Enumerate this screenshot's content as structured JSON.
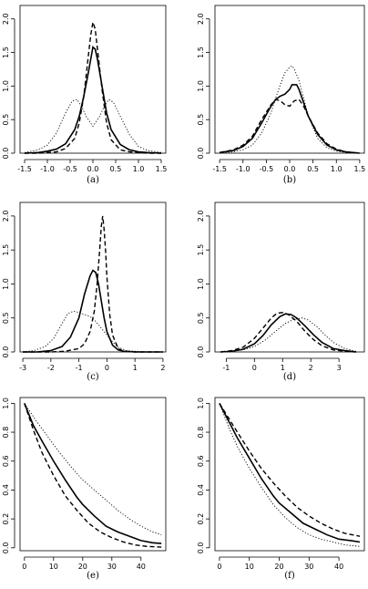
{
  "chart_data": [
    {
      "type": "line",
      "caption": "(a)",
      "xlim": [
        -1.6,
        1.6
      ],
      "ylim": [
        0,
        2.2
      ],
      "xticks": [
        "-1.5",
        "-1.0",
        "-0.5",
        "0.0",
        "0.5",
        "1.0",
        "1.5"
      ],
      "xtick_values": [
        -1.5,
        -1.0,
        -0.5,
        0.0,
        0.5,
        1.0,
        1.5
      ],
      "yticks": [
        "0.0",
        "0.5",
        "1.0",
        "1.5",
        "2.0"
      ],
      "ytick_values": [
        0.0,
        0.5,
        1.0,
        1.5,
        2.0
      ],
      "series": [
        {
          "style": "solid",
          "x": [
            -1.5,
            -1.2,
            -1.0,
            -0.8,
            -0.6,
            -0.4,
            -0.3,
            -0.2,
            -0.1,
            0.0,
            0.05,
            0.1,
            0.2,
            0.3,
            0.4,
            0.6,
            0.8,
            1.0,
            1.2,
            1.5
          ],
          "y": [
            0.0,
            0.01,
            0.03,
            0.06,
            0.14,
            0.35,
            0.55,
            0.85,
            1.2,
            1.58,
            1.55,
            1.4,
            1.0,
            0.6,
            0.35,
            0.13,
            0.05,
            0.02,
            0.01,
            0.0
          ]
        },
        {
          "style": "dashed",
          "x": [
            -1.5,
            -1.2,
            -1.0,
            -0.8,
            -0.6,
            -0.4,
            -0.3,
            -0.2,
            -0.1,
            -0.05,
            0.0,
            0.05,
            0.1,
            0.2,
            0.3,
            0.4,
            0.6,
            0.8,
            1.0,
            1.2,
            1.5
          ],
          "y": [
            0.0,
            0.0,
            0.01,
            0.02,
            0.07,
            0.22,
            0.45,
            0.85,
            1.45,
            1.75,
            1.95,
            1.85,
            1.55,
            0.95,
            0.45,
            0.2,
            0.05,
            0.02,
            0.01,
            0.0,
            0.0
          ]
        },
        {
          "style": "dotted",
          "x": [
            -1.5,
            -1.2,
            -1.0,
            -0.8,
            -0.6,
            -0.45,
            -0.35,
            -0.25,
            -0.15,
            -0.05,
            0.0,
            0.05,
            0.15,
            0.25,
            0.35,
            0.45,
            0.6,
            0.8,
            1.0,
            1.2,
            1.5
          ],
          "y": [
            0.01,
            0.05,
            0.12,
            0.3,
            0.6,
            0.78,
            0.8,
            0.7,
            0.55,
            0.45,
            0.4,
            0.45,
            0.55,
            0.7,
            0.8,
            0.76,
            0.55,
            0.28,
            0.1,
            0.04,
            0.01
          ]
        }
      ]
    },
    {
      "type": "line",
      "caption": "(b)",
      "xlim": [
        -1.6,
        1.6
      ],
      "ylim": [
        0,
        2.2
      ],
      "xticks": [
        "-1.5",
        "-1.0",
        "-0.5",
        "0.0",
        "0.5",
        "1.0",
        "1.5"
      ],
      "xtick_values": [
        -1.5,
        -1.0,
        -0.5,
        0.0,
        0.5,
        1.0,
        1.5
      ],
      "yticks": [
        "0.0",
        "0.5",
        "1.0",
        "1.5",
        "2.0"
      ],
      "ytick_values": [
        0.0,
        0.5,
        1.0,
        1.5,
        2.0
      ],
      "series": [
        {
          "style": "solid",
          "x": [
            -1.5,
            -1.2,
            -1.0,
            -0.8,
            -0.6,
            -0.4,
            -0.3,
            -0.2,
            -0.1,
            0.0,
            0.05,
            0.15,
            0.2,
            0.3,
            0.4,
            0.6,
            0.8,
            1.0,
            1.2,
            1.5
          ],
          "y": [
            0.01,
            0.04,
            0.1,
            0.22,
            0.45,
            0.7,
            0.8,
            0.85,
            0.88,
            0.95,
            1.02,
            1.02,
            0.95,
            0.75,
            0.55,
            0.28,
            0.12,
            0.05,
            0.02,
            0.0
          ]
        },
        {
          "style": "dashed",
          "x": [
            -1.5,
            -1.2,
            -1.0,
            -0.8,
            -0.6,
            -0.4,
            -0.3,
            -0.2,
            -0.1,
            0.0,
            0.1,
            0.2,
            0.3,
            0.4,
            0.6,
            0.8,
            1.0,
            1.2,
            1.5
          ],
          "y": [
            0.01,
            0.05,
            0.12,
            0.25,
            0.5,
            0.72,
            0.8,
            0.78,
            0.72,
            0.7,
            0.78,
            0.8,
            0.7,
            0.55,
            0.3,
            0.14,
            0.06,
            0.02,
            0.0
          ]
        },
        {
          "style": "dotted",
          "x": [
            -1.5,
            -1.2,
            -1.0,
            -0.8,
            -0.6,
            -0.4,
            -0.3,
            -0.2,
            -0.1,
            0.0,
            0.05,
            0.1,
            0.2,
            0.3,
            0.4,
            0.6,
            0.8,
            1.0,
            1.2,
            1.5
          ],
          "y": [
            0.0,
            0.02,
            0.05,
            0.12,
            0.3,
            0.6,
            0.82,
            1.02,
            1.2,
            1.28,
            1.3,
            1.25,
            1.08,
            0.82,
            0.55,
            0.22,
            0.08,
            0.03,
            0.01,
            0.0
          ]
        }
      ]
    },
    {
      "type": "line",
      "caption": "(c)",
      "xlim": [
        -3.1,
        2.1
      ],
      "ylim": [
        0,
        2.2
      ],
      "xticks": [
        "-3",
        "-2",
        "-1",
        "0",
        "1",
        "2"
      ],
      "xtick_values": [
        -3,
        -2,
        -1,
        0,
        1,
        2
      ],
      "yticks": [
        "0.0",
        "0.5",
        "1.0",
        "1.5",
        "2.0"
      ],
      "ytick_values": [
        0.0,
        0.5,
        1.0,
        1.5,
        2.0
      ],
      "series": [
        {
          "style": "solid",
          "x": [
            -3.0,
            -2.5,
            -2.0,
            -1.6,
            -1.3,
            -1.0,
            -0.8,
            -0.6,
            -0.5,
            -0.4,
            -0.3,
            -0.2,
            -0.1,
            0.0,
            0.2,
            0.4,
            0.6,
            1.0,
            1.5,
            2.0
          ],
          "y": [
            0.0,
            0.0,
            0.02,
            0.08,
            0.22,
            0.5,
            0.85,
            1.12,
            1.2,
            1.17,
            1.0,
            0.75,
            0.5,
            0.3,
            0.1,
            0.03,
            0.01,
            0.0,
            0.0,
            0.0
          ]
        },
        {
          "style": "dashed",
          "x": [
            -3.0,
            -2.5,
            -2.0,
            -1.5,
            -1.0,
            -0.8,
            -0.6,
            -0.45,
            -0.35,
            -0.25,
            -0.2,
            -0.15,
            -0.1,
            -0.05,
            0.0,
            0.1,
            0.2,
            0.4,
            0.6,
            1.0,
            2.0
          ],
          "y": [
            0.0,
            0.0,
            0.0,
            0.01,
            0.05,
            0.12,
            0.3,
            0.6,
            1.0,
            1.55,
            1.85,
            2.0,
            1.8,
            1.5,
            1.1,
            0.55,
            0.25,
            0.05,
            0.01,
            0.0,
            0.0
          ]
        },
        {
          "style": "dotted",
          "x": [
            -3.0,
            -2.6,
            -2.2,
            -1.9,
            -1.6,
            -1.4,
            -1.2,
            -1.0,
            -0.8,
            -0.6,
            -0.4,
            -0.2,
            0.0,
            0.2,
            0.4,
            0.7,
            1.0,
            1.5,
            2.0
          ],
          "y": [
            0.0,
            0.02,
            0.08,
            0.2,
            0.42,
            0.56,
            0.6,
            0.58,
            0.55,
            0.52,
            0.45,
            0.35,
            0.25,
            0.15,
            0.07,
            0.02,
            0.01,
            0.0,
            0.0
          ]
        }
      ]
    },
    {
      "type": "line",
      "caption": "(d)",
      "xlim": [
        -1.4,
        3.9
      ],
      "ylim": [
        0,
        2.2
      ],
      "xticks": [
        "-1",
        "0",
        "1",
        "2",
        "3"
      ],
      "xtick_values": [
        -1,
        0,
        1,
        2,
        3
      ],
      "yticks": [
        "0.0",
        "0.5",
        "1.0",
        "1.5",
        "2.0"
      ],
      "ytick_values": [
        0.0,
        0.5,
        1.0,
        1.5,
        2.0
      ],
      "series": [
        {
          "style": "solid",
          "x": [
            -1.2,
            -0.8,
            -0.4,
            0.0,
            0.3,
            0.6,
            0.9,
            1.1,
            1.3,
            1.5,
            1.8,
            2.1,
            2.4,
            2.8,
            3.2,
            3.6
          ],
          "y": [
            0.0,
            0.01,
            0.04,
            0.12,
            0.24,
            0.4,
            0.52,
            0.56,
            0.55,
            0.5,
            0.38,
            0.25,
            0.14,
            0.05,
            0.02,
            0.0
          ]
        },
        {
          "style": "dashed",
          "x": [
            -1.2,
            -0.8,
            -0.4,
            0.0,
            0.3,
            0.6,
            0.8,
            1.0,
            1.2,
            1.5,
            1.8,
            2.1,
            2.4,
            2.8,
            3.2,
            3.6
          ],
          "y": [
            0.0,
            0.02,
            0.07,
            0.2,
            0.35,
            0.5,
            0.57,
            0.58,
            0.55,
            0.45,
            0.3,
            0.18,
            0.09,
            0.03,
            0.01,
            0.0
          ]
        },
        {
          "style": "dotted",
          "x": [
            -1.2,
            -0.8,
            -0.4,
            0.0,
            0.4,
            0.8,
            1.1,
            1.4,
            1.7,
            1.9,
            2.2,
            2.5,
            2.8,
            3.2,
            3.6
          ],
          "y": [
            0.0,
            0.01,
            0.03,
            0.08,
            0.18,
            0.32,
            0.42,
            0.48,
            0.5,
            0.47,
            0.38,
            0.25,
            0.14,
            0.05,
            0.01
          ]
        }
      ]
    },
    {
      "type": "line",
      "caption": "(e)",
      "xlim": [
        -1.5,
        48.5
      ],
      "ylim": [
        -0.02,
        1.04
      ],
      "xticks": [
        "0",
        "10",
        "20",
        "30",
        "40"
      ],
      "xtick_values": [
        0,
        10,
        20,
        30,
        40
      ],
      "yticks": [
        "0.0",
        "0.2",
        "0.4",
        "0.6",
        "0.8",
        "1.0"
      ],
      "ytick_values": [
        0.0,
        0.2,
        0.4,
        0.6,
        0.8,
        1.0
      ],
      "series": [
        {
          "style": "solid",
          "x": [
            0,
            3,
            6,
            10,
            14,
            18,
            20,
            24,
            28,
            32,
            36,
            40,
            44,
            47
          ],
          "y": [
            1.0,
            0.85,
            0.74,
            0.6,
            0.47,
            0.35,
            0.3,
            0.22,
            0.15,
            0.11,
            0.08,
            0.05,
            0.035,
            0.03
          ]
        },
        {
          "style": "dashed",
          "x": [
            0,
            3,
            6,
            10,
            14,
            18,
            22,
            26,
            30,
            34,
            38,
            42,
            47
          ],
          "y": [
            1.0,
            0.82,
            0.66,
            0.5,
            0.36,
            0.26,
            0.17,
            0.11,
            0.07,
            0.04,
            0.02,
            0.01,
            0.005
          ]
        },
        {
          "style": "dotted",
          "x": [
            0,
            4,
            8,
            12,
            16,
            20,
            24,
            28,
            32,
            36,
            40,
            44,
            47
          ],
          "y": [
            1.0,
            0.88,
            0.77,
            0.66,
            0.56,
            0.47,
            0.4,
            0.33,
            0.26,
            0.2,
            0.15,
            0.11,
            0.09
          ]
        }
      ]
    },
    {
      "type": "line",
      "caption": "(f)",
      "xlim": [
        -1.5,
        48.5
      ],
      "ylim": [
        -0.02,
        1.04
      ],
      "xticks": [
        "0",
        "10",
        "20",
        "30",
        "40"
      ],
      "xtick_values": [
        0,
        10,
        20,
        30,
        40
      ],
      "yticks": [
        "0.0",
        "0.2",
        "0.4",
        "0.6",
        "0.8",
        "1.0"
      ],
      "ytick_values": [
        0.0,
        0.2,
        0.4,
        0.6,
        0.8,
        1.0
      ],
      "series": [
        {
          "style": "solid",
          "x": [
            0,
            3,
            6,
            10,
            14,
            18,
            20,
            24,
            28,
            32,
            36,
            40,
            44,
            47
          ],
          "y": [
            1.0,
            0.88,
            0.76,
            0.62,
            0.48,
            0.36,
            0.31,
            0.24,
            0.17,
            0.13,
            0.09,
            0.06,
            0.05,
            0.04
          ]
        },
        {
          "style": "dashed",
          "x": [
            0,
            3,
            6,
            10,
            14,
            18,
            22,
            26,
            30,
            34,
            38,
            42,
            47
          ],
          "y": [
            1.0,
            0.9,
            0.8,
            0.67,
            0.55,
            0.45,
            0.36,
            0.28,
            0.22,
            0.17,
            0.13,
            0.1,
            0.08
          ]
        },
        {
          "style": "dotted",
          "x": [
            0,
            3,
            6,
            10,
            14,
            18,
            22,
            26,
            30,
            34,
            38,
            42,
            47
          ],
          "y": [
            1.0,
            0.84,
            0.7,
            0.55,
            0.42,
            0.3,
            0.21,
            0.14,
            0.09,
            0.06,
            0.04,
            0.02,
            0.01
          ]
        }
      ]
    }
  ]
}
